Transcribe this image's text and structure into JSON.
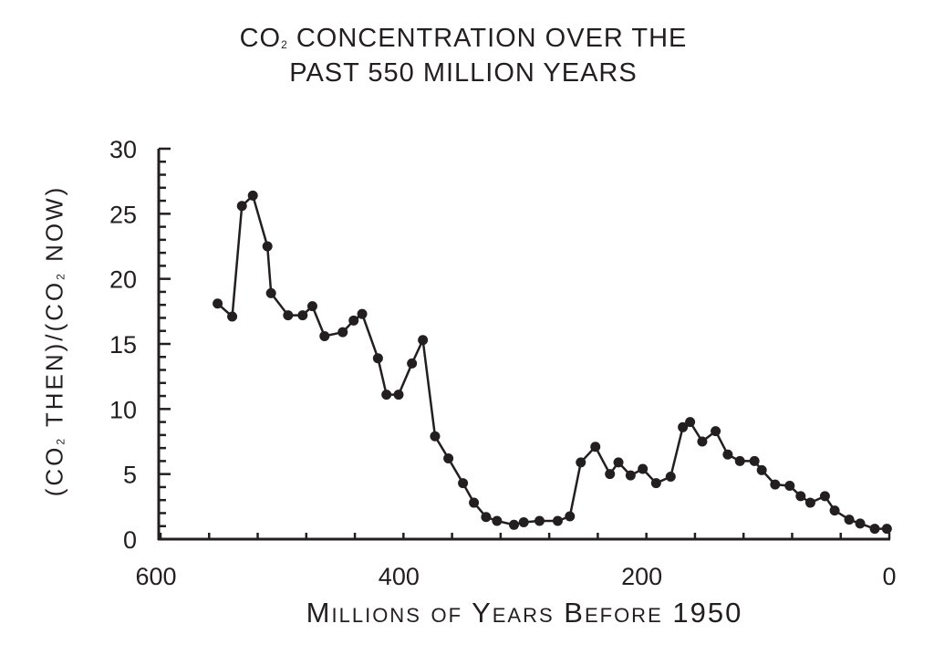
{
  "chart_data": {
    "type": "line",
    "title_line1": {
      "pre": "CO",
      "sub": "2",
      "post": " CONCENTRATION OVER THE"
    },
    "title_line2": "PAST 550 MILLION YEARS",
    "xlabel": "Millions of Years Before 1950",
    "ylabel": {
      "p1": "(CO",
      "s1": "2",
      "p2": " THEN)/(CO",
      "s2": "2",
      "p3": " NOW)"
    },
    "xlim": [
      600,
      0
    ],
    "ylim": [
      0,
      30
    ],
    "xticks": [
      600,
      400,
      200,
      0
    ],
    "yticks": [
      0,
      5,
      10,
      15,
      20,
      25,
      30
    ],
    "marker": "circle",
    "color": "#231f20",
    "x": [
      553,
      541,
      533,
      524,
      512,
      509,
      495,
      483,
      475,
      465,
      450,
      441,
      434,
      421,
      414,
      404,
      393,
      384,
      374,
      363,
      351,
      342,
      332,
      323,
      309,
      301,
      288,
      273,
      263,
      254,
      242,
      230,
      223,
      213,
      203,
      192,
      180,
      170,
      164,
      154,
      143,
      133,
      123,
      111,
      105,
      94,
      82,
      73,
      65,
      53,
      45,
      33,
      24,
      12,
      2
    ],
    "y": [
      18.1,
      17.1,
      25.6,
      26.4,
      22.5,
      18.9,
      17.2,
      17.2,
      17.9,
      15.6,
      15.9,
      16.8,
      17.3,
      13.9,
      11.1,
      11.1,
      13.5,
      15.3,
      7.9,
      6.2,
      4.3,
      2.8,
      1.7,
      1.4,
      1.1,
      1.3,
      1.4,
      1.4,
      1.75,
      5.9,
      7.1,
      5.0,
      5.9,
      4.9,
      5.4,
      4.3,
      4.8,
      8.6,
      9.0,
      7.5,
      8.3,
      6.5,
      6.0,
      6.0,
      5.3,
      4.2,
      4.1,
      3.3,
      2.8,
      3.3,
      2.2,
      1.5,
      1.2,
      0.8,
      0.8
    ]
  }
}
